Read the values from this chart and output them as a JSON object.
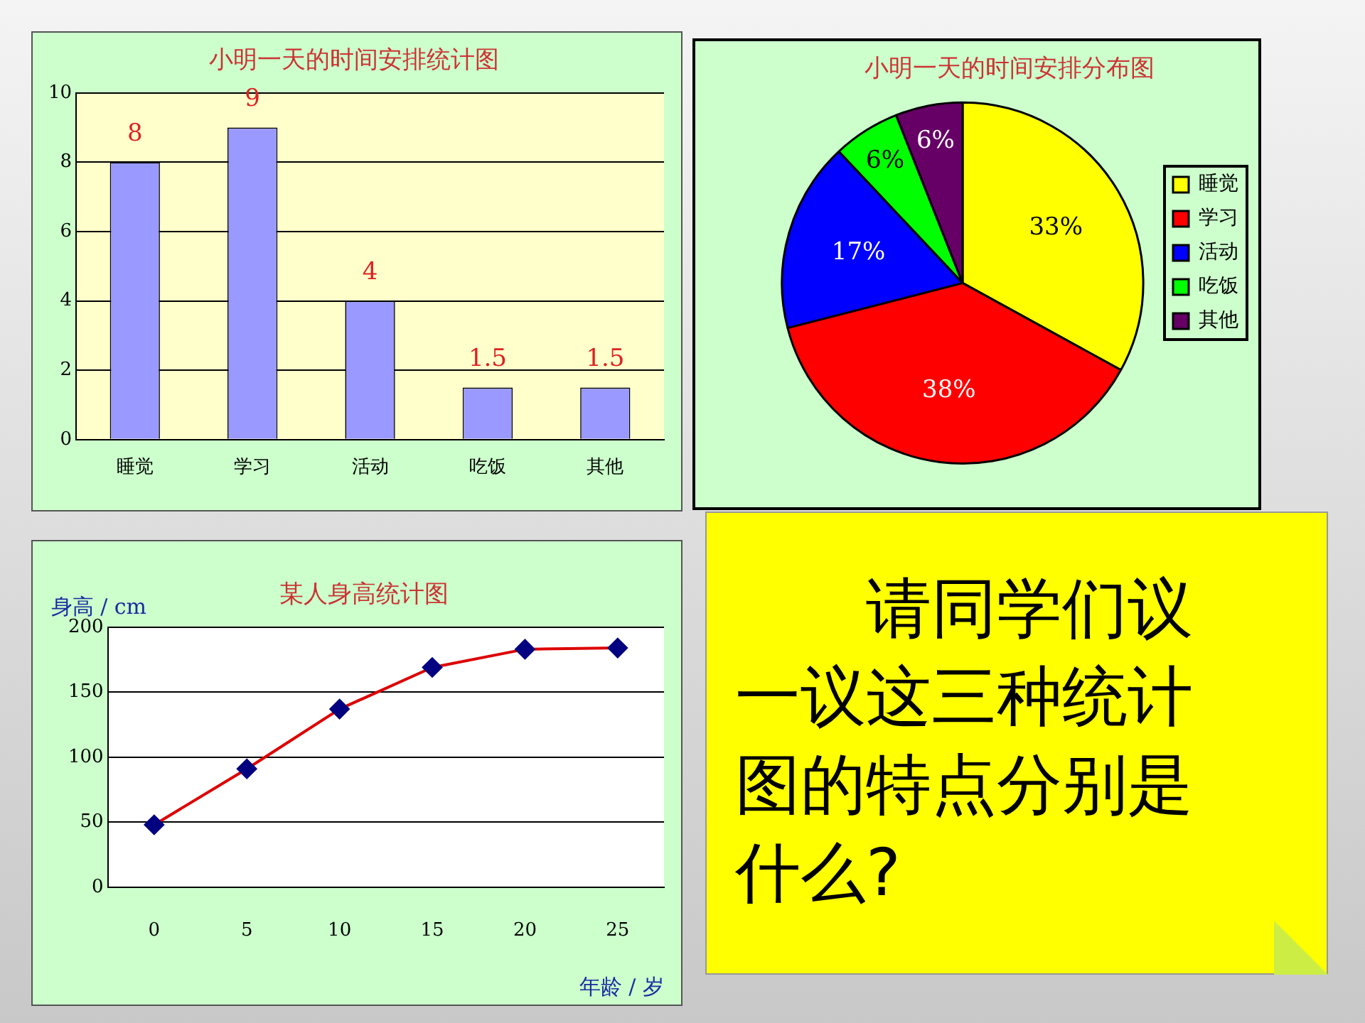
{
  "chart_data": [
    {
      "type": "bar",
      "title": "小明一天的时间安排统计图",
      "categories": [
        "睡觉",
        "学习",
        "活动",
        "吃饭",
        "其他"
      ],
      "values": [
        8,
        9,
        4,
        1.5,
        1.5
      ],
      "color": "#9999ff",
      "ylim": [
        0,
        10
      ],
      "yticks": [
        0,
        2,
        4,
        6,
        8,
        10
      ],
      "grid": "y",
      "data_labels": true,
      "legend": false
    },
    {
      "type": "pie",
      "title": "小明一天的时间安排分布图",
      "categories": [
        "睡觉",
        "学习",
        "活动",
        "吃饭",
        "其他"
      ],
      "values": [
        33,
        38,
        17,
        6,
        6
      ],
      "colors": [
        "#ffff00",
        "#ff0000",
        "#0000ff",
        "#00ff00",
        "#660066"
      ],
      "value_labels": [
        "33%",
        "38%",
        "17%",
        "6%",
        "6%"
      ],
      "legend": "right"
    },
    {
      "type": "line",
      "title": "某人身高统计图",
      "xlabel": "年龄 / 岁",
      "ylabel": "身高 / cm",
      "categories": [
        "0",
        "5",
        "10",
        "15",
        "20",
        "25"
      ],
      "series": [
        {
          "color": "#dd0000",
          "values": [
            48,
            91,
            137,
            169,
            183,
            184
          ],
          "colors": [
            "#000080",
            "#000080",
            "#000080",
            "#000080",
            "#000080",
            "#000080"
          ]
        }
      ],
      "ylim": [
        0,
        200
      ],
      "yticks": [
        0,
        50,
        100,
        150,
        200
      ],
      "grid": "y",
      "marker": "diamond",
      "line_style": "solid",
      "legend": false
    },
    {
      "type": "other",
      "annotations": [
        "请同学们议一议这三种统计图的特点分别是什么?"
      ]
    }
  ]
}
